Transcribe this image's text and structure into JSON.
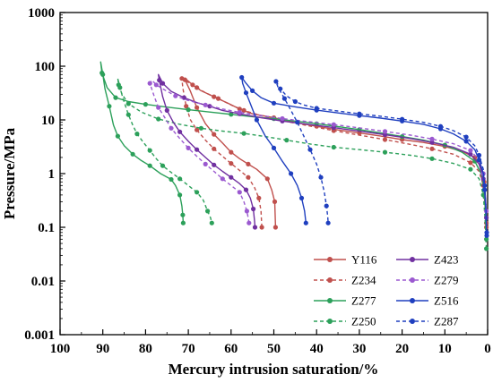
{
  "chart_data": {
    "type": "line",
    "xlabel": "Mercury intrusion saturation/%",
    "ylabel": "Pressure/MPa",
    "x_reversed": true,
    "xlim": [
      100,
      0
    ],
    "ylim": [
      0.001,
      1000
    ],
    "yscale": "log",
    "xticks": [
      "100",
      "90",
      "80",
      "70",
      "60",
      "50",
      "40",
      "30",
      "20",
      "10",
      "0"
    ],
    "yticks": [
      "0.001",
      "0.01",
      "0.1",
      "1",
      "10",
      "100",
      "1000"
    ],
    "grid": false,
    "legend_position": "bottom-right",
    "series": [
      {
        "name": "Y116",
        "color": "#c0504d",
        "dashed": false,
        "points": [
          [
            0.3,
            0.12
          ],
          [
            0.5,
            0.3
          ],
          [
            0.8,
            0.7
          ],
          [
            1.5,
            1.3
          ],
          [
            3,
            2
          ],
          [
            6,
            2.6
          ],
          [
            10,
            3.2
          ],
          [
            15,
            3.8
          ],
          [
            20,
            4.3
          ],
          [
            25,
            5
          ],
          [
            30,
            5.7
          ],
          [
            35,
            6.5
          ],
          [
            40,
            7.6
          ],
          [
            45,
            9
          ],
          [
            50,
            11
          ],
          [
            55,
            13
          ],
          [
            58,
            16
          ],
          [
            61,
            21
          ],
          [
            64,
            27
          ],
          [
            67,
            35
          ],
          [
            69,
            45
          ],
          [
            70.5,
            57
          ],
          [
            70.8,
            56
          ],
          [
            69.5,
            34
          ],
          [
            68,
            17
          ],
          [
            66,
            8.5
          ],
          [
            64,
            5.4
          ],
          [
            62,
            3.7
          ],
          [
            60,
            2.5
          ],
          [
            58,
            1.9
          ],
          [
            56,
            1.5
          ],
          [
            54,
            1.2
          ],
          [
            51.5,
            0.8
          ],
          [
            50.5,
            0.5
          ],
          [
            49.8,
            0.3
          ],
          [
            49.6,
            0.1
          ]
        ]
      },
      {
        "name": "Z234",
        "color": "#c0504d",
        "dashed": true,
        "points": [
          [
            0.3,
            0.1
          ],
          [
            0.6,
            0.25
          ],
          [
            1,
            0.6
          ],
          [
            2,
            1.1
          ],
          [
            4,
            1.6
          ],
          [
            8,
            2.3
          ],
          [
            13,
            2.9
          ],
          [
            18,
            3.5
          ],
          [
            24,
            4.3
          ],
          [
            30,
            5.2
          ],
          [
            36,
            6.3
          ],
          [
            42,
            7.8
          ],
          [
            48,
            9.7
          ],
          [
            53,
            12
          ],
          [
            57,
            15
          ],
          [
            60,
            19
          ],
          [
            63,
            25
          ],
          [
            66,
            32
          ],
          [
            68,
            40
          ],
          [
            70,
            50
          ],
          [
            71.5,
            59
          ],
          [
            71.3,
            40
          ],
          [
            70.5,
            18
          ],
          [
            69.5,
            10
          ],
          [
            68,
            6.5
          ],
          [
            66,
            4.2
          ],
          [
            64,
            2.9
          ],
          [
            62,
            2.1
          ],
          [
            60,
            1.55
          ],
          [
            58,
            1.15
          ],
          [
            56,
            0.85
          ],
          [
            54.5,
            0.55
          ],
          [
            53.5,
            0.35
          ],
          [
            53,
            0.2
          ],
          [
            52.8,
            0.1
          ]
        ]
      },
      {
        "name": "Z277",
        "color": "#2ca05a",
        "dashed": false,
        "points": [
          [
            0.3,
            0.06
          ],
          [
            0.5,
            0.2
          ],
          [
            0.8,
            0.5
          ],
          [
            1.5,
            1
          ],
          [
            3,
            1.7
          ],
          [
            6,
            2.5
          ],
          [
            10,
            3.4
          ],
          [
            15,
            4.2
          ],
          [
            20,
            4.9
          ],
          [
            25,
            5.7
          ],
          [
            30,
            6.6
          ],
          [
            35,
            7.5
          ],
          [
            40,
            8.5
          ],
          [
            45,
            9.5
          ],
          [
            50,
            10.5
          ],
          [
            55,
            11.5
          ],
          [
            60,
            12.7
          ],
          [
            65,
            14
          ],
          [
            70,
            15.5
          ],
          [
            75,
            17.3
          ],
          [
            80,
            19.5
          ],
          [
            84,
            22
          ],
          [
            87,
            26
          ],
          [
            89,
            40
          ],
          [
            90.2,
            75
          ],
          [
            90.5,
            120
          ],
          [
            90,
            70
          ],
          [
            89.5,
            38
          ],
          [
            88.5,
            18
          ],
          [
            87.5,
            8
          ],
          [
            86.5,
            5
          ],
          [
            85,
            3.3
          ],
          [
            83,
            2.3
          ],
          [
            81,
            1.75
          ],
          [
            79,
            1.4
          ],
          [
            76.5,
            1
          ],
          [
            74,
            0.78
          ],
          [
            73,
            0.6
          ],
          [
            72,
            0.4
          ],
          [
            71.5,
            0.25
          ],
          [
            71.3,
            0.17
          ],
          [
            71.2,
            0.12
          ]
        ]
      },
      {
        "name": "Z250",
        "color": "#2ca05a",
        "dashed": true,
        "points": [
          [
            0.3,
            0.04
          ],
          [
            0.6,
            0.15
          ],
          [
            1,
            0.4
          ],
          [
            2,
            0.8
          ],
          [
            4,
            1.2
          ],
          [
            8,
            1.55
          ],
          [
            13,
            1.9
          ],
          [
            18,
            2.2
          ],
          [
            24,
            2.5
          ],
          [
            30,
            2.8
          ],
          [
            36,
            3.1
          ],
          [
            42,
            3.6
          ],
          [
            47,
            4.2
          ],
          [
            52,
            4.9
          ],
          [
            57,
            5.6
          ],
          [
            62,
            6.2
          ],
          [
            67,
            7
          ],
          [
            72,
            8.3
          ],
          [
            77,
            10.4
          ],
          [
            81,
            14
          ],
          [
            84,
            20
          ],
          [
            85.5,
            30
          ],
          [
            86.3,
            45
          ],
          [
            86.5,
            60
          ],
          [
            86,
            40
          ],
          [
            85.2,
            24
          ],
          [
            84,
            12.5
          ],
          [
            83,
            8
          ],
          [
            82,
            5.5
          ],
          [
            80.5,
            3.8
          ],
          [
            79,
            2.7
          ],
          [
            77.5,
            1.9
          ],
          [
            76,
            1.4
          ],
          [
            74,
            1.05
          ],
          [
            72,
            0.8
          ],
          [
            70,
            0.6
          ],
          [
            68,
            0.45
          ],
          [
            66.5,
            0.32
          ],
          [
            65.5,
            0.2
          ],
          [
            64.8,
            0.15
          ],
          [
            64.5,
            0.12
          ]
        ]
      },
      {
        "name": "Z423",
        "color": "#7030a0",
        "dashed": false,
        "points": [
          [
            0.3,
            0.15
          ],
          [
            0.6,
            0.4
          ],
          [
            1,
            0.8
          ],
          [
            2,
            1.5
          ],
          [
            4,
            2.3
          ],
          [
            8,
            3.1
          ],
          [
            13,
            3.8
          ],
          [
            18,
            4.5
          ],
          [
            24,
            5.3
          ],
          [
            30,
            6.2
          ],
          [
            36,
            7.2
          ],
          [
            42,
            8.3
          ],
          [
            48,
            9.5
          ],
          [
            53,
            11
          ],
          [
            58,
            13
          ],
          [
            62,
            15
          ],
          [
            65,
            18
          ],
          [
            68,
            21
          ],
          [
            71,
            26
          ],
          [
            74,
            34
          ],
          [
            76,
            48
          ],
          [
            77,
            70
          ],
          [
            76.8,
            55
          ],
          [
            76,
            27
          ],
          [
            75,
            15
          ],
          [
            73.5,
            9
          ],
          [
            72,
            6
          ],
          [
            70,
            4
          ],
          [
            68,
            2.8
          ],
          [
            66,
            2
          ],
          [
            64,
            1.45
          ],
          [
            62,
            1.1
          ],
          [
            60,
            0.85
          ],
          [
            58,
            0.65
          ],
          [
            56.5,
            0.5
          ],
          [
            55.5,
            0.35
          ],
          [
            54.8,
            0.22
          ],
          [
            54.5,
            0.13
          ],
          [
            54.4,
            0.1
          ]
        ]
      },
      {
        "name": "Z279",
        "color": "#9b59d0",
        "dashed": true,
        "points": [
          [
            0.3,
            0.2
          ],
          [
            0.6,
            0.5
          ],
          [
            1,
            1
          ],
          [
            2,
            1.8
          ],
          [
            4,
            2.7
          ],
          [
            8,
            3.6
          ],
          [
            13,
            4.4
          ],
          [
            18,
            5.2
          ],
          [
            24,
            6.1
          ],
          [
            30,
            7.1
          ],
          [
            36,
            8.2
          ],
          [
            42,
            9.3
          ],
          [
            48,
            10.6
          ],
          [
            53,
            12
          ],
          [
            58,
            13.8
          ],
          [
            62,
            16
          ],
          [
            66,
            19
          ],
          [
            70,
            23
          ],
          [
            73,
            28
          ],
          [
            75.5,
            36
          ],
          [
            77.5,
            45
          ],
          [
            78.5,
            55
          ],
          [
            79,
            48
          ],
          [
            78,
            28
          ],
          [
            77,
            17
          ],
          [
            75.5,
            11
          ],
          [
            74,
            7
          ],
          [
            72,
            4.5
          ],
          [
            70,
            3
          ],
          [
            68,
            2.1
          ],
          [
            66,
            1.5
          ],
          [
            64,
            1.1
          ],
          [
            62,
            0.8
          ],
          [
            60,
            0.6
          ],
          [
            58,
            0.45
          ],
          [
            57,
            0.3
          ],
          [
            56.3,
            0.2
          ],
          [
            56,
            0.15
          ],
          [
            55.8,
            0.12
          ]
        ]
      },
      {
        "name": "Z516",
        "color": "#1f3fbf",
        "dashed": false,
        "points": [
          [
            0.2,
            0.07
          ],
          [
            0.4,
            0.2
          ],
          [
            0.7,
            0.5
          ],
          [
            1,
            1
          ],
          [
            2,
            1.8
          ],
          [
            3,
            2.8
          ],
          [
            5,
            4
          ],
          [
            8,
            5.5
          ],
          [
            11,
            6.8
          ],
          [
            15,
            8.3
          ],
          [
            20,
            9.5
          ],
          [
            25,
            10.8
          ],
          [
            30,
            12
          ],
          [
            35,
            13.5
          ],
          [
            40,
            15.2
          ],
          [
            45,
            17.5
          ],
          [
            50,
            20.5
          ],
          [
            53,
            26
          ],
          [
            55,
            35
          ],
          [
            56.5,
            48
          ],
          [
            57.5,
            62
          ],
          [
            57.3,
            48
          ],
          [
            56.5,
            32
          ],
          [
            55.5,
            20
          ],
          [
            54,
            10
          ],
          [
            52,
            5
          ],
          [
            50,
            3
          ],
          [
            48,
            1.7
          ],
          [
            46,
            1
          ],
          [
            44.5,
            0.6
          ],
          [
            43.5,
            0.35
          ],
          [
            42.8,
            0.2
          ],
          [
            42.5,
            0.12
          ]
        ]
      },
      {
        "name": "Z287",
        "color": "#1f3fbf",
        "dashed": true,
        "points": [
          [
            0.2,
            0.08
          ],
          [
            0.4,
            0.25
          ],
          [
            0.7,
            0.6
          ],
          [
            1,
            1.2
          ],
          [
            2,
            2.2
          ],
          [
            3,
            3.3
          ],
          [
            5,
            4.8
          ],
          [
            8,
            6.3
          ],
          [
            11,
            7.6
          ],
          [
            15,
            9
          ],
          [
            20,
            10.3
          ],
          [
            25,
            11.7
          ],
          [
            30,
            13
          ],
          [
            35,
            14.6
          ],
          [
            40,
            16.5
          ],
          [
            43,
            19
          ],
          [
            45,
            22
          ],
          [
            47,
            28
          ],
          [
            48.5,
            38
          ],
          [
            49.3,
            50
          ],
          [
            49.5,
            52
          ],
          [
            49,
            40
          ],
          [
            47.5,
            25
          ],
          [
            46,
            15
          ],
          [
            44.5,
            9
          ],
          [
            43,
            5
          ],
          [
            41.5,
            2.8
          ],
          [
            40,
            1.5
          ],
          [
            39,
            0.85
          ],
          [
            38.2,
            0.45
          ],
          [
            37.7,
            0.25
          ],
          [
            37.4,
            0.16
          ],
          [
            37.3,
            0.12
          ]
        ]
      }
    ]
  }
}
